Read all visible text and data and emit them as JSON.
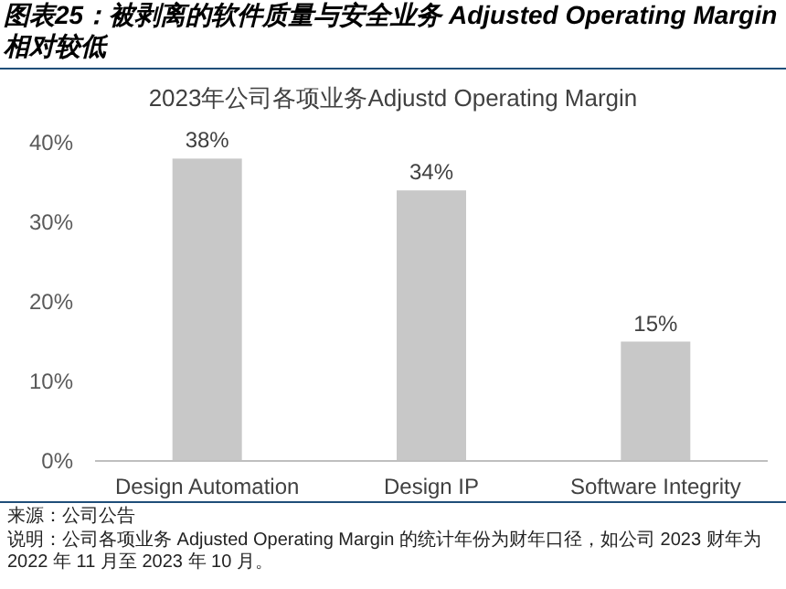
{
  "chart_data": {
    "type": "bar",
    "title": "图表25：被剥离的软件质量与安全业务 Adjusted Operating Margin 相对较低",
    "subtitle": "2023年公司各项业务Adjustd Operating  Margin",
    "categories": [
      "Design Automation",
      "Design IP",
      "Software Integrity"
    ],
    "values": [
      38,
      34,
      15
    ],
    "color": "#c8c8c8",
    "value_labels": [
      "38%",
      "34%",
      "15%"
    ],
    "ylim": [
      0,
      40
    ],
    "yticks": [
      {
        "value": 0,
        "label": "0%"
      },
      {
        "value": 10,
        "label": "10%"
      },
      {
        "value": 20,
        "label": "20%"
      },
      {
        "value": 30,
        "label": "30%"
      },
      {
        "value": 40,
        "label": "40%"
      }
    ],
    "grid": false,
    "annotations": [
      "来源：公司公告",
      "说明：公司各项业务 Adjusted Operating Margin 的统计年份为财年口径，如公司 2023 财年为 2022 年 11 月至 2023 年 10 月。"
    ]
  }
}
